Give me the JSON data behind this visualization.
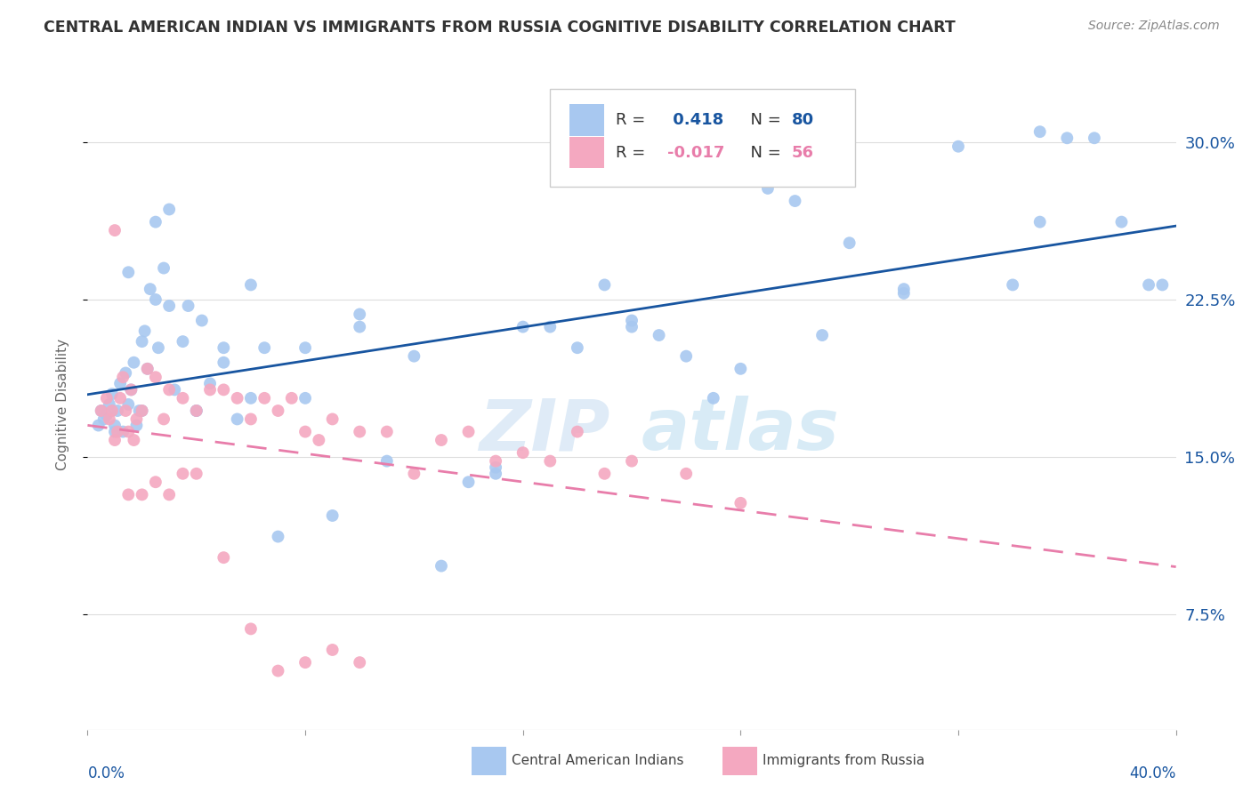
{
  "title": "CENTRAL AMERICAN INDIAN VS IMMIGRANTS FROM RUSSIA COGNITIVE DISABILITY CORRELATION CHART",
  "source": "Source: ZipAtlas.com",
  "ylabel": "Cognitive Disability",
  "yticks": [
    7.5,
    15.0,
    22.5,
    30.0
  ],
  "ytick_labels": [
    "7.5%",
    "15.0%",
    "22.5%",
    "30.0%"
  ],
  "xlim": [
    0.0,
    40.0
  ],
  "ylim": [
    2.0,
    33.0
  ],
  "color_blue": "#A8C8F0",
  "color_pink": "#F4A8C0",
  "trendline_blue": "#1855A0",
  "trendline_pink": "#E87DAA",
  "blue_x": [
    0.4,
    0.5,
    0.6,
    0.7,
    0.8,
    0.9,
    1.0,
    1.1,
    1.2,
    1.3,
    1.4,
    1.5,
    1.6,
    1.7,
    1.8,
    1.9,
    2.0,
    2.1,
    2.2,
    2.3,
    2.5,
    2.6,
    2.8,
    3.0,
    3.2,
    3.5,
    3.7,
    4.0,
    4.2,
    4.5,
    5.0,
    5.5,
    6.0,
    6.5,
    7.0,
    8.0,
    9.0,
    10.0,
    11.0,
    12.0,
    13.0,
    14.0,
    15.0,
    16.0,
    17.0,
    18.0,
    19.0,
    20.0,
    21.0,
    22.0,
    23.0,
    24.0,
    25.0,
    26.0,
    27.0,
    28.0,
    30.0,
    32.0,
    34.0,
    35.0,
    36.0,
    37.0,
    38.0,
    39.0,
    1.0,
    1.5,
    2.0,
    2.5,
    3.0,
    4.0,
    5.0,
    6.0,
    8.0,
    10.0,
    15.0,
    20.0,
    25.0,
    30.0,
    35.0,
    39.5
  ],
  "blue_y": [
    16.5,
    17.2,
    16.8,
    17.0,
    17.5,
    18.0,
    16.5,
    17.2,
    18.5,
    16.2,
    19.0,
    17.5,
    18.2,
    19.5,
    16.5,
    17.2,
    20.5,
    21.0,
    19.2,
    23.0,
    22.5,
    20.2,
    24.0,
    22.2,
    18.2,
    20.5,
    22.2,
    17.2,
    21.5,
    18.5,
    19.5,
    16.8,
    17.8,
    20.2,
    11.2,
    20.2,
    12.2,
    21.2,
    14.8,
    19.8,
    9.8,
    13.8,
    14.2,
    21.2,
    21.2,
    20.2,
    23.2,
    21.2,
    20.8,
    19.8,
    17.8,
    19.2,
    27.8,
    27.2,
    20.8,
    25.2,
    22.8,
    29.8,
    23.2,
    26.2,
    30.2,
    30.2,
    26.2,
    23.2,
    16.2,
    23.8,
    17.2,
    26.2,
    26.8,
    17.2,
    20.2,
    23.2,
    17.8,
    21.8,
    14.5,
    21.5,
    28.2,
    23.0,
    30.5,
    23.2
  ],
  "pink_x": [
    0.5,
    0.7,
    0.8,
    0.9,
    1.0,
    1.1,
    1.2,
    1.3,
    1.4,
    1.5,
    1.6,
    1.7,
    1.8,
    2.0,
    2.2,
    2.5,
    2.8,
    3.0,
    3.5,
    4.0,
    4.5,
    5.0,
    5.5,
    6.0,
    6.5,
    7.0,
    7.5,
    8.0,
    8.5,
    9.0,
    10.0,
    11.0,
    12.0,
    13.0,
    14.0,
    15.0,
    16.0,
    17.0,
    18.0,
    19.0,
    20.0,
    22.0,
    24.0,
    1.0,
    1.5,
    2.0,
    2.5,
    3.0,
    3.5,
    4.0,
    5.0,
    6.0,
    7.0,
    8.0,
    9.0,
    10.0
  ],
  "pink_y": [
    17.2,
    17.8,
    16.8,
    17.2,
    15.8,
    16.2,
    17.8,
    18.8,
    17.2,
    16.2,
    18.2,
    15.8,
    16.8,
    17.2,
    19.2,
    18.8,
    16.8,
    18.2,
    17.8,
    17.2,
    18.2,
    18.2,
    17.8,
    16.8,
    17.8,
    17.2,
    17.8,
    16.2,
    15.8,
    16.8,
    16.2,
    16.2,
    14.2,
    15.8,
    16.2,
    14.8,
    15.2,
    14.8,
    16.2,
    14.2,
    14.8,
    14.2,
    12.8,
    25.8,
    13.2,
    13.2,
    13.8,
    13.2,
    14.2,
    14.2,
    10.2,
    6.8,
    4.8,
    5.2,
    5.8,
    5.2
  ]
}
